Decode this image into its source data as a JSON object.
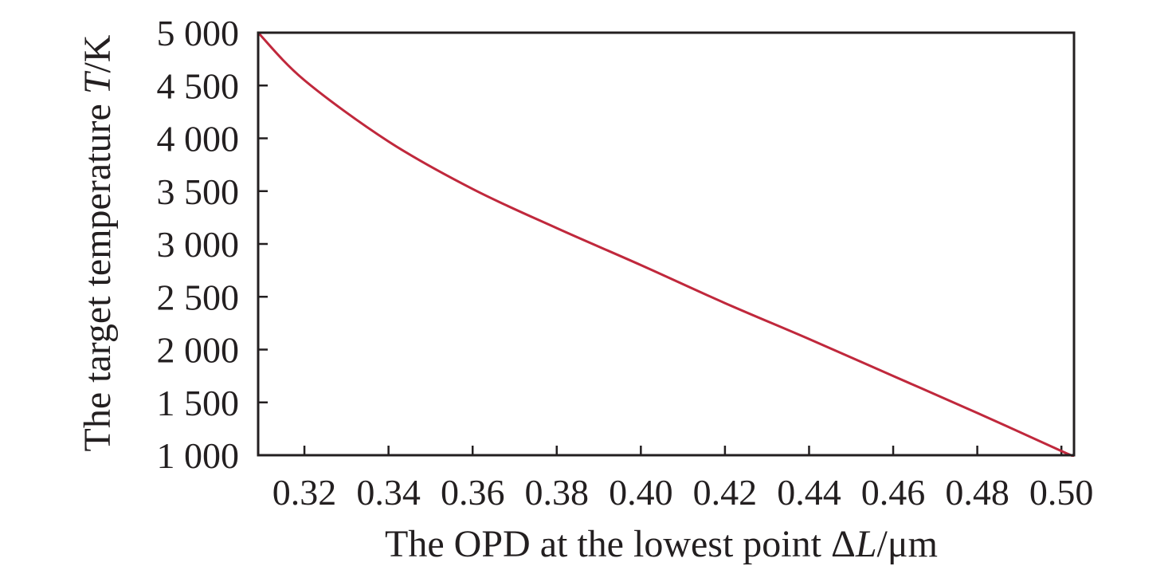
{
  "chart_data": {
    "type": "line",
    "title": "",
    "xlabel": {
      "prefix": "The OPD at the lowest point Δ",
      "italic": "L",
      "suffix": "/μm"
    },
    "ylabel": {
      "prefix": "The target temperature ",
      "italic": "T",
      "suffix": "/K"
    },
    "xlim": [
      0.309,
      0.503
    ],
    "ylim": [
      1000,
      5000
    ],
    "xticks": [
      0.32,
      0.34,
      0.36,
      0.38,
      0.4,
      0.42,
      0.44,
      0.46,
      0.48,
      0.5
    ],
    "xtick_labels": [
      "0.32",
      "0.34",
      "0.36",
      "0.38",
      "0.40",
      "0.42",
      "0.44",
      "0.46",
      "0.48",
      "0.50"
    ],
    "yticks": [
      1000,
      1500,
      2000,
      2500,
      3000,
      3500,
      4000,
      4500,
      5000
    ],
    "ytick_labels": [
      "1 000",
      "1 500",
      "2 000",
      "2 500",
      "3 000",
      "3 500",
      "4 000",
      "4 500",
      "5 000"
    ],
    "grid": false,
    "colors": {
      "line": "#c0283c",
      "axis": "#231f20"
    },
    "series": [
      {
        "x": [
          0.309,
          0.32,
          0.34,
          0.36,
          0.38,
          0.4,
          0.42,
          0.44,
          0.46,
          0.48,
          0.5,
          0.503
        ],
        "y": [
          5000,
          4550,
          3970,
          3520,
          3150,
          2800,
          2440,
          2100,
          1750,
          1400,
          1040,
          990
        ]
      }
    ]
  }
}
